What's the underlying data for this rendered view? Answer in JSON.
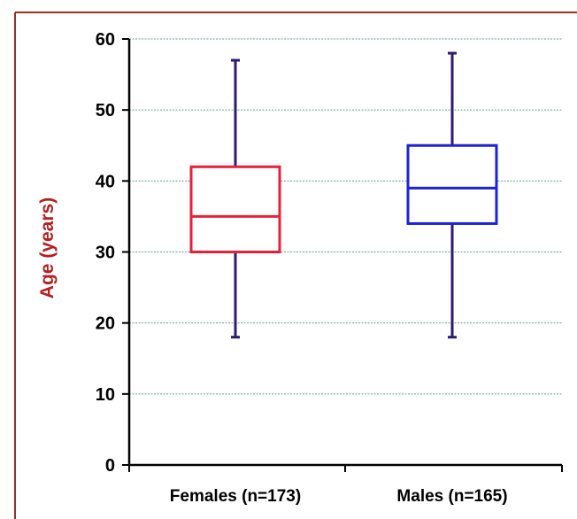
{
  "chart_data": {
    "type": "box",
    "ylabel": "Age (years)",
    "ylim": [
      0,
      60
    ],
    "yticks": [
      0,
      10,
      20,
      30,
      40,
      50,
      60
    ],
    "ytick_labels": [
      "0",
      "10",
      "20",
      "30",
      "40",
      "50",
      "60"
    ],
    "grid": true,
    "categories": [
      "Females (n=173)",
      "Males (n=165)"
    ],
    "boxes": [
      {
        "category": "Females (n=173)",
        "min": 18,
        "q1": 30,
        "median": 35,
        "q3": 42,
        "max": 57,
        "color": "#e8203a"
      },
      {
        "category": "Males (n=165)",
        "min": 18,
        "q1": 34,
        "median": 39,
        "q3": 45,
        "max": 58,
        "color": "#1c22d8"
      }
    ],
    "colors": {
      "border": "#a52a2a",
      "ylabel": "#b52020",
      "whisker": "#2e1a6e",
      "grid": "#5fa58a",
      "axis": "#000000"
    }
  }
}
